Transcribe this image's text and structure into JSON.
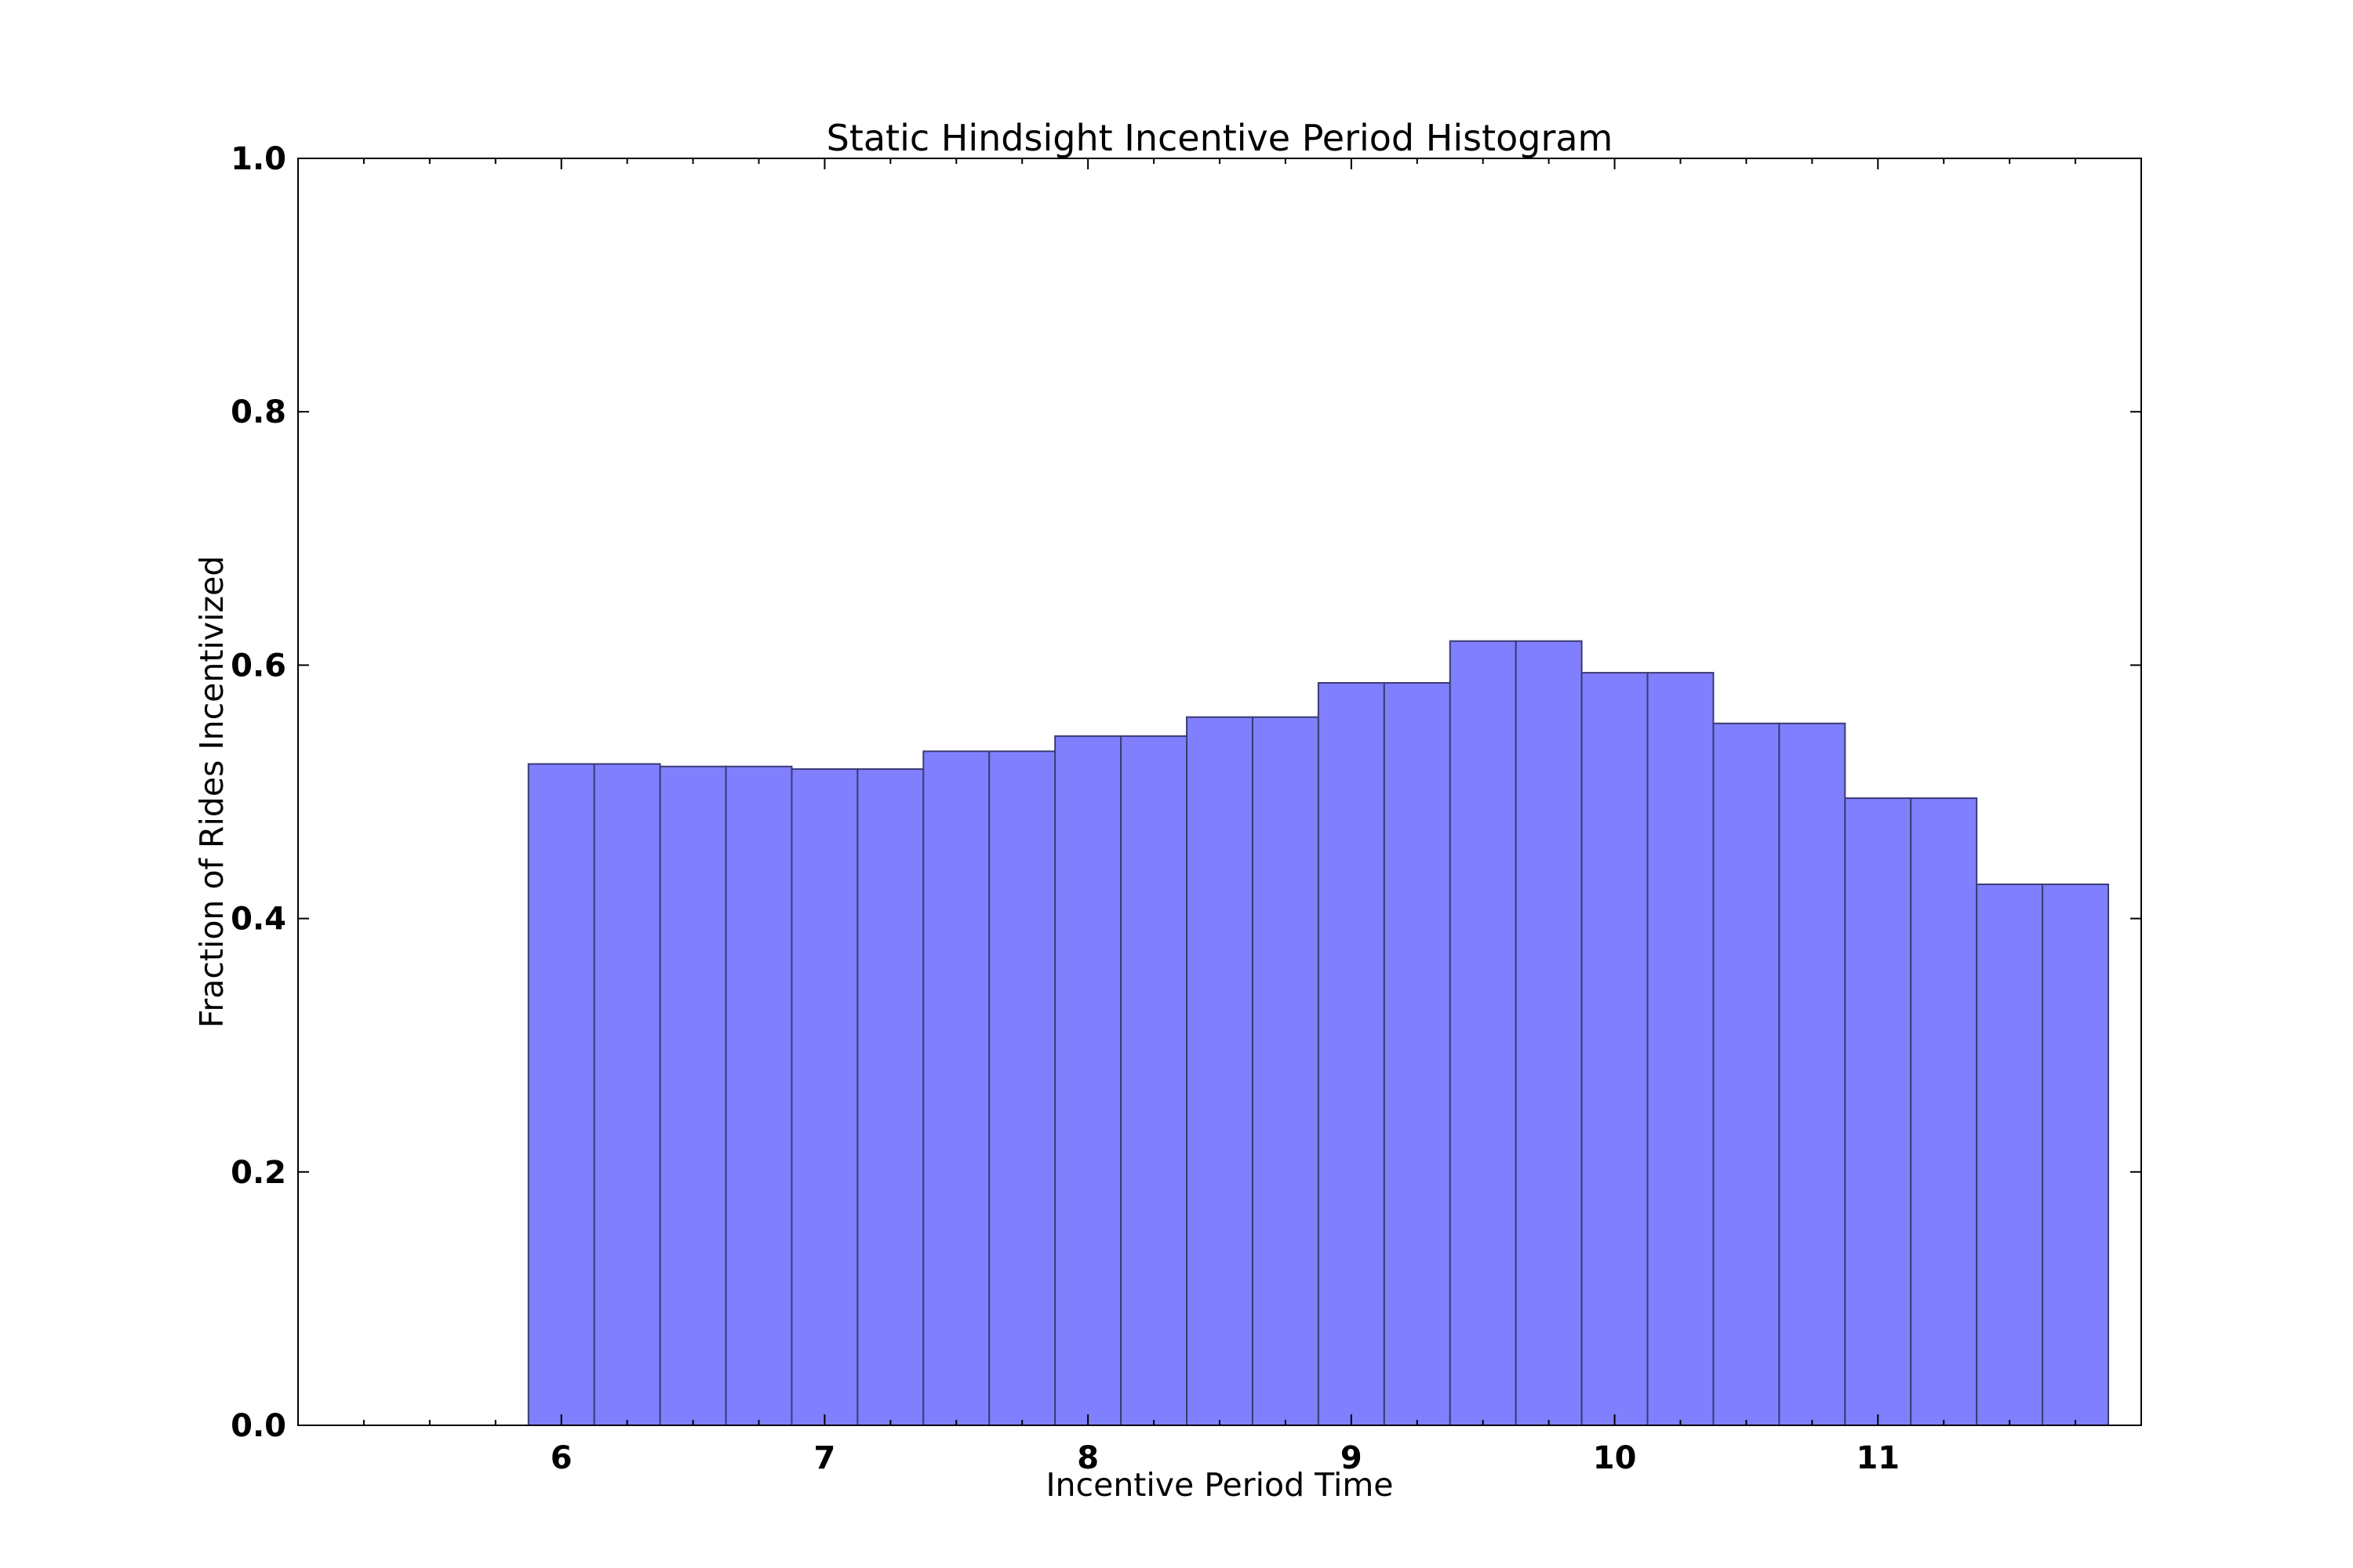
{
  "chart_data": {
    "type": "bar",
    "title": "Static Hindsight Incentive Period Histogram",
    "xlabel": "Incentive Period Time",
    "ylabel": "Fraction of Rides Incentivized",
    "xlim": [
      5.0,
      12.0
    ],
    "ylim": [
      0.0,
      1.0
    ],
    "xticks": [
      6,
      7,
      8,
      9,
      10,
      11
    ],
    "xtick_labels": [
      "6",
      "7",
      "8",
      "9",
      "10",
      "11"
    ],
    "yticks": [
      0.0,
      0.2,
      0.4,
      0.6,
      0.8,
      1.0
    ],
    "ytick_labels": [
      "0.0",
      "0.2",
      "0.4",
      "0.6",
      "0.8",
      "1.0"
    ],
    "bar_color": "#8080ff",
    "bar_edge_color": "#3b3b73",
    "grid": false,
    "bins": [
      {
        "start": 5.875,
        "end": 6.125,
        "value": 0.522
      },
      {
        "start": 6.125,
        "end": 6.375,
        "value": 0.522
      },
      {
        "start": 6.375,
        "end": 6.625,
        "value": 0.52
      },
      {
        "start": 6.625,
        "end": 6.875,
        "value": 0.52
      },
      {
        "start": 6.875,
        "end": 7.125,
        "value": 0.518
      },
      {
        "start": 7.125,
        "end": 7.375,
        "value": 0.518
      },
      {
        "start": 7.375,
        "end": 7.625,
        "value": 0.532
      },
      {
        "start": 7.625,
        "end": 7.875,
        "value": 0.532
      },
      {
        "start": 7.875,
        "end": 8.125,
        "value": 0.544
      },
      {
        "start": 8.125,
        "end": 8.375,
        "value": 0.544
      },
      {
        "start": 8.375,
        "end": 8.625,
        "value": 0.559
      },
      {
        "start": 8.625,
        "end": 8.875,
        "value": 0.559
      },
      {
        "start": 8.875,
        "end": 9.125,
        "value": 0.586
      },
      {
        "start": 9.125,
        "end": 9.375,
        "value": 0.586
      },
      {
        "start": 9.375,
        "end": 9.625,
        "value": 0.619
      },
      {
        "start": 9.625,
        "end": 9.875,
        "value": 0.619
      },
      {
        "start": 9.875,
        "end": 10.125,
        "value": 0.594
      },
      {
        "start": 10.125,
        "end": 10.375,
        "value": 0.594
      },
      {
        "start": 10.375,
        "end": 10.625,
        "value": 0.554
      },
      {
        "start": 10.625,
        "end": 10.875,
        "value": 0.554
      },
      {
        "start": 10.875,
        "end": 11.125,
        "value": 0.495
      },
      {
        "start": 11.125,
        "end": 11.375,
        "value": 0.495
      },
      {
        "start": 11.375,
        "end": 11.625,
        "value": 0.427
      },
      {
        "start": 11.625,
        "end": 11.875,
        "value": 0.427
      }
    ]
  }
}
